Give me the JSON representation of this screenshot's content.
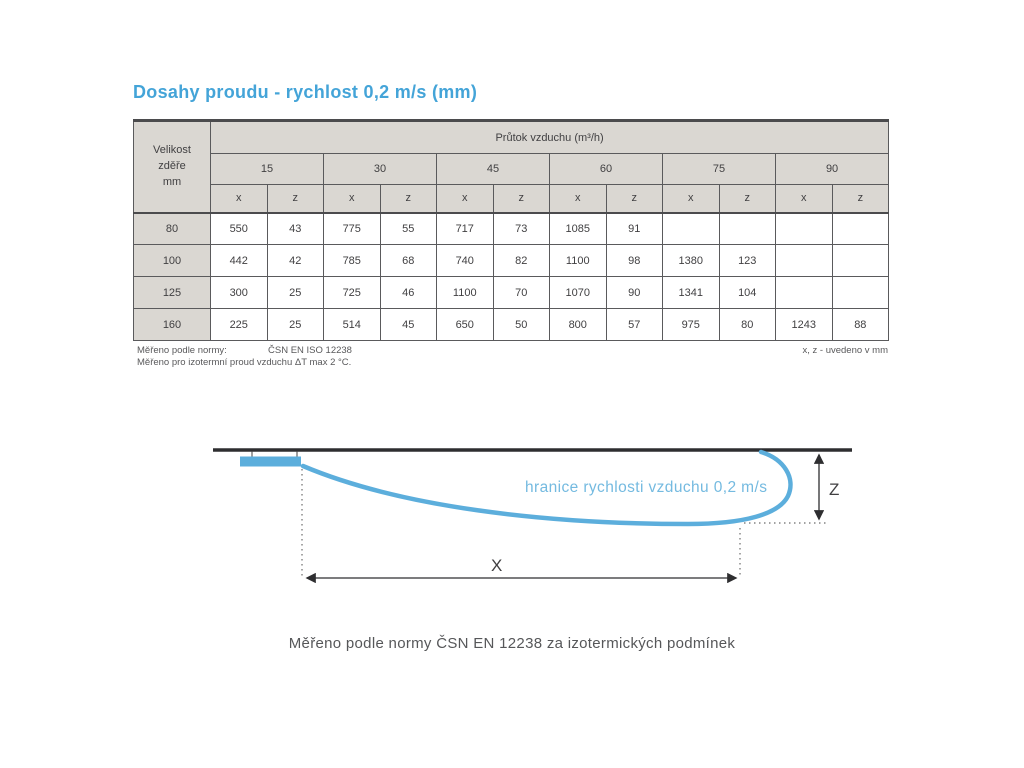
{
  "page": {
    "title": "Dosahy proudu - rychlost 0,2 m/s (mm)"
  },
  "table": {
    "corner_header": "Velikost\nzděře\nmm",
    "flow_header": "Průtok vzduchu (m³/h)",
    "flow_rates": [
      "15",
      "30",
      "45",
      "60",
      "75",
      "90"
    ],
    "sub_headers": [
      "x",
      "z"
    ],
    "rows": [
      {
        "size": "80",
        "values": [
          "550",
          "43",
          "775",
          "55",
          "717",
          "73",
          "1085",
          "91",
          "",
          "",
          "",
          ""
        ]
      },
      {
        "size": "100",
        "values": [
          "442",
          "42",
          "785",
          "68",
          "740",
          "82",
          "1100",
          "98",
          "1380",
          "123",
          "",
          ""
        ]
      },
      {
        "size": "125",
        "values": [
          "300",
          "25",
          "725",
          "46",
          "1100",
          "70",
          "1070",
          "90",
          "1341",
          "104",
          "",
          ""
        ]
      },
      {
        "size": "160",
        "values": [
          "225",
          "25",
          "514",
          "45",
          "650",
          "50",
          "800",
          "57",
          "975",
          "80",
          "1243",
          "88"
        ]
      }
    ]
  },
  "notes": {
    "measured_label": "Měřeno podle normy:",
    "standard": "ČSN EN ISO 12238",
    "isothermal_note": "Měřeno pro izotermní proud vzduchu ΔT max 2 °C.",
    "units_note": "x, z - uvedeno v mm"
  },
  "diagram": {
    "boundary_label": "hranice rychlosti vzduchu 0,2 m/s",
    "x_dim_label": "X",
    "z_dim_label": "Z"
  },
  "caption": "Měřeno podle normy ČSN EN 12238 za izotermických podmínek",
  "colors": {
    "accent_blue": "#44a4d8",
    "curve_blue": "#5caedc",
    "label_blue": "#74bae0",
    "header_bg": "#dad7d2",
    "border_dark": "#4b4b4d",
    "text_dark": "#414042",
    "note_gray": "#59595b"
  }
}
